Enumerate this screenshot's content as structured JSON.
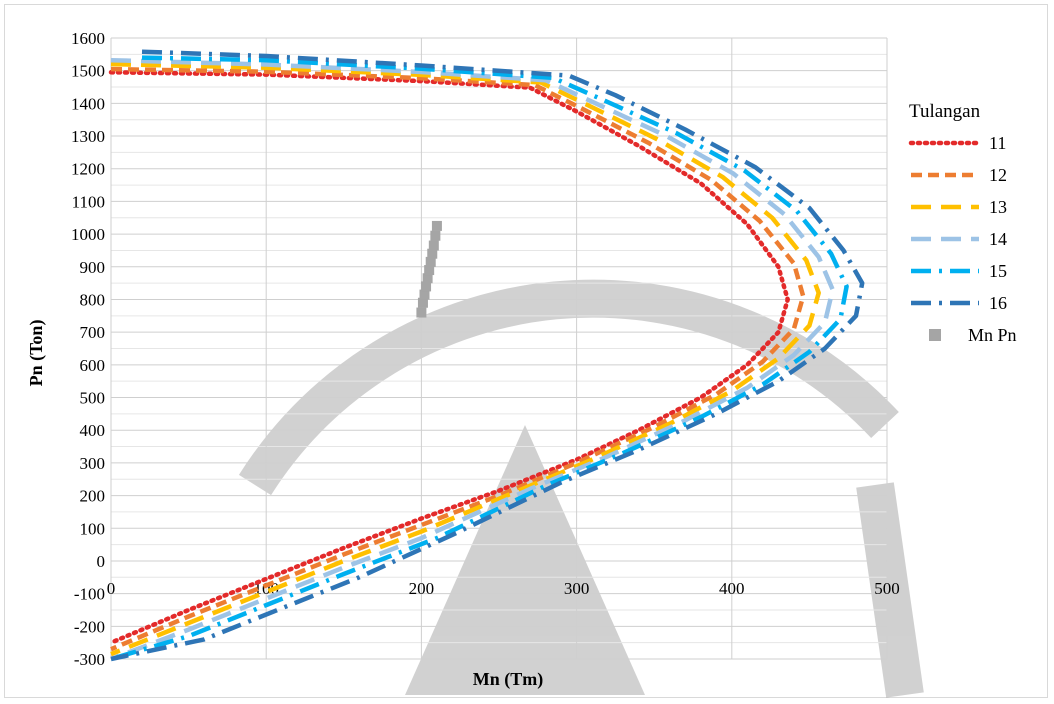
{
  "chart_data": {
    "type": "scatter",
    "title": "",
    "xlabel": "Mn (Tm)",
    "ylabel": "Pn (Ton)",
    "xlim": [
      0,
      500
    ],
    "ylim": [
      -300,
      1600
    ],
    "x_ticks": [
      "0",
      "100",
      "200",
      "300",
      "400",
      "500"
    ],
    "y_ticks": [
      "1600",
      "1500",
      "1400",
      "1300",
      "1200",
      "1100",
      "1000",
      "900",
      "800",
      "700",
      "600",
      "500",
      "400",
      "300",
      "200",
      "100",
      "0",
      "-100",
      "-200",
      "-300"
    ],
    "grid": true,
    "legend_title": "Tulangan",
    "legend_position": "right",
    "series": [
      {
        "name": "11",
        "color": "#e32a2a",
        "dash": "dot",
        "x": [
          0,
          100,
          200,
          270,
          300,
          340,
          380,
          410,
          430,
          436,
          430,
          410,
          380,
          340,
          300,
          250,
          200,
          150,
          100,
          50,
          0
        ],
        "y": [
          1495,
          1488,
          1468,
          1448,
          1375,
          1270,
          1155,
          1030,
          900,
          800,
          700,
          600,
          500,
          400,
          310,
          215,
          130,
          40,
          -55,
          -150,
          -250
        ]
      },
      {
        "name": "12",
        "color": "#ed7d31",
        "dash": "dash",
        "x": [
          0,
          100,
          200,
          273,
          303,
          346,
          387,
          418,
          440,
          446,
          440,
          420,
          390,
          350,
          300,
          250,
          200,
          150,
          100,
          50,
          0
        ],
        "y": [
          1505,
          1497,
          1477,
          1456,
          1385,
          1280,
          1165,
          1040,
          910,
          810,
          710,
          610,
          510,
          410,
          300,
          200,
          110,
          20,
          -75,
          -170,
          -270
        ]
      },
      {
        "name": "13",
        "color": "#ffc000",
        "dash": "longdash",
        "x": [
          0,
          100,
          200,
          277,
          307,
          352,
          394,
          426,
          448,
          456,
          450,
          430,
          400,
          360,
          310,
          260,
          200,
          150,
          100,
          50,
          0
        ],
        "y": [
          1520,
          1509,
          1487,
          1464,
          1395,
          1290,
          1175,
          1050,
          920,
          820,
          720,
          620,
          520,
          420,
          310,
          210,
          90,
          0,
          -95,
          -190,
          -285
        ]
      },
      {
        "name": "14",
        "color": "#9dc3e6",
        "dash": "longdash",
        "x": [
          0,
          100,
          200,
          280,
          310,
          358,
          401,
          434,
          456,
          465,
          460,
          440,
          410,
          370,
          320,
          270,
          200,
          150,
          100,
          50,
          0
        ],
        "y": [
          1532,
          1519,
          1496,
          1471,
          1405,
          1300,
          1185,
          1060,
          930,
          830,
          730,
          630,
          530,
          430,
          320,
          220,
          70,
          -20,
          -115,
          -210,
          -300
        ]
      },
      {
        "name": "15",
        "color": "#00b0f0",
        "dash": "dashdot",
        "x": [
          20,
          100,
          200,
          285,
          315,
          364,
          408,
          442,
          464,
          474,
          470,
          450,
          420,
          380,
          330,
          280,
          210,
          150,
          100,
          50,
          0
        ],
        "y": [
          1540,
          1532,
          1506,
          1478,
          1415,
          1310,
          1195,
          1070,
          940,
          840,
          740,
          640,
          540,
          440,
          330,
          230,
          70,
          -40,
          -135,
          -230,
          -300
        ]
      },
      {
        "name": "16",
        "color": "#2e75b6",
        "dash": "dashdot",
        "x": [
          20,
          100,
          200,
          295,
          325,
          370,
          415,
          450,
          472,
          484,
          480,
          460,
          430,
          390,
          340,
          290,
          220,
          160,
          110,
          60,
          0
        ],
        "y": [
          1558,
          1545,
          1516,
          1485,
          1425,
          1320,
          1205,
          1080,
          950,
          850,
          750,
          650,
          550,
          450,
          340,
          240,
          80,
          -50,
          -145,
          -240,
          -300
        ]
      },
      {
        "name": "Mn Pn",
        "color": "#a5a5a5",
        "dash": "none",
        "marker": "square",
        "x": [
          200,
          201,
          202,
          203,
          204,
          205,
          206,
          207,
          208,
          209,
          210
        ],
        "y": [
          760,
          790,
          815,
          840,
          865,
          890,
          915,
          940,
          965,
          995,
          1025
        ]
      }
    ]
  }
}
